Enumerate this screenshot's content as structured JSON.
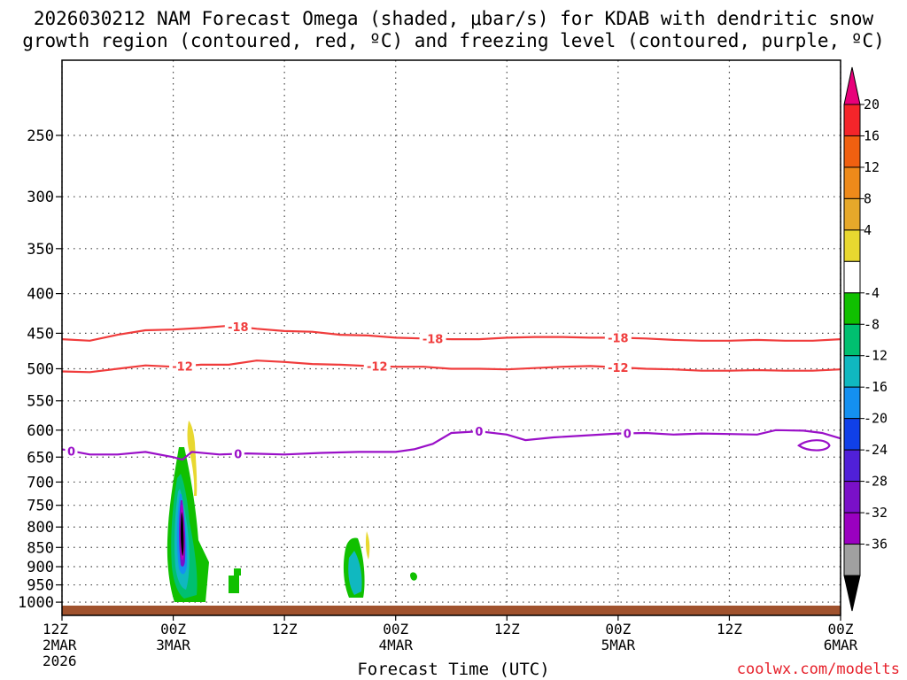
{
  "title_line1": "2026030212 NAM Forecast Omega (shaded, μbar/s) for KDAB with dendritic snow",
  "title_line2": "growth region (contoured, red, ºC) and freezing level (contoured, purple, ºC)",
  "credit": "coolwx.com/modelts",
  "chart_data": {
    "type": "contour",
    "xlabel": "Forecast Time (UTC)",
    "x_ticks": [
      {
        "hour": 0,
        "lines": [
          "12Z",
          "2MAR",
          "2026"
        ]
      },
      {
        "hour": 12,
        "lines": [
          "00Z",
          "3MAR"
        ]
      },
      {
        "hour": 24,
        "lines": [
          "12Z"
        ]
      },
      {
        "hour": 36,
        "lines": [
          "00Z",
          "4MAR"
        ]
      },
      {
        "hour": 48,
        "lines": [
          "12Z"
        ]
      },
      {
        "hour": 60,
        "lines": [
          "00Z",
          "5MAR"
        ]
      },
      {
        "hour": 72,
        "lines": [
          "12Z"
        ]
      },
      {
        "hour": 84,
        "lines": [
          "00Z",
          "6MAR"
        ]
      }
    ],
    "xlim": [
      0,
      84
    ],
    "y_ticks": [
      250,
      300,
      350,
      400,
      450,
      500,
      550,
      600,
      650,
      700,
      750,
      800,
      850,
      900,
      950,
      1000
    ],
    "ylim_hpa": [
      1040,
      200
    ],
    "y_scale": "log-pressure",
    "grid": true,
    "colorbar": {
      "labels": [
        "20",
        "16",
        "12",
        "8",
        "4",
        "-4",
        "-8",
        "-12",
        "-16",
        "-20",
        "-24",
        "-28",
        "-32",
        "-36"
      ],
      "colors": [
        "#e8007a",
        "#f4252a",
        "#f06010",
        "#ee8a1a",
        "#e6a82a",
        "#e8d830",
        "#ffffff",
        "#10c000",
        "#00c070",
        "#10b8c0",
        "#1490f0",
        "#1040e8",
        "#5020d8",
        "#7a10c8",
        "#9a00c0",
        "#a0a0a0",
        "#000000"
      ]
    },
    "contours_red": [
      {
        "label": "-18",
        "label_hours": [
          19,
          40,
          60
        ],
        "points": [
          [
            0,
            458
          ],
          [
            3,
            460
          ],
          [
            6,
            452
          ],
          [
            9,
            446
          ],
          [
            12,
            445
          ],
          [
            15,
            443
          ],
          [
            18,
            440
          ],
          [
            21,
            444
          ],
          [
            24,
            447
          ],
          [
            27,
            448
          ],
          [
            30,
            452
          ],
          [
            33,
            453
          ],
          [
            36,
            456
          ],
          [
            39,
            457
          ],
          [
            42,
            458
          ],
          [
            45,
            458
          ],
          [
            48,
            456
          ],
          [
            51,
            455
          ],
          [
            54,
            455
          ],
          [
            57,
            456
          ],
          [
            60,
            456
          ],
          [
            63,
            457
          ],
          [
            66,
            459
          ],
          [
            69,
            460
          ],
          [
            72,
            460
          ],
          [
            75,
            459
          ],
          [
            78,
            460
          ],
          [
            81,
            460
          ],
          [
            84,
            458
          ]
        ]
      },
      {
        "label": "-12",
        "label_hours": [
          13,
          34,
          60
        ],
        "points": [
          [
            0,
            504
          ],
          [
            3,
            505
          ],
          [
            6,
            500
          ],
          [
            9,
            495
          ],
          [
            12,
            497
          ],
          [
            15,
            494
          ],
          [
            18,
            494
          ],
          [
            21,
            488
          ],
          [
            24,
            490
          ],
          [
            27,
            493
          ],
          [
            30,
            494
          ],
          [
            33,
            496
          ],
          [
            36,
            497
          ],
          [
            39,
            497
          ],
          [
            42,
            500
          ],
          [
            45,
            500
          ],
          [
            48,
            501
          ],
          [
            51,
            499
          ],
          [
            54,
            497
          ],
          [
            57,
            496
          ],
          [
            60,
            498
          ],
          [
            63,
            500
          ],
          [
            66,
            501
          ],
          [
            69,
            503
          ],
          [
            72,
            503
          ],
          [
            75,
            502
          ],
          [
            78,
            503
          ],
          [
            81,
            503
          ],
          [
            84,
            501
          ]
        ]
      }
    ],
    "contours_purple": [
      {
        "label": "0",
        "label_hours": [
          1,
          19,
          45,
          61
        ],
        "points": [
          [
            0,
            635
          ],
          [
            3,
            645
          ],
          [
            6,
            645
          ],
          [
            9,
            640
          ],
          [
            12,
            650
          ],
          [
            13,
            655
          ],
          [
            14,
            640
          ],
          [
            17,
            645
          ],
          [
            20,
            643
          ],
          [
            24,
            645
          ],
          [
            28,
            642
          ],
          [
            32,
            640
          ],
          [
            36,
            640
          ],
          [
            38,
            635
          ],
          [
            40,
            625
          ],
          [
            42,
            605
          ],
          [
            45,
            602
          ],
          [
            48,
            608
          ],
          [
            50,
            618
          ],
          [
            53,
            613
          ],
          [
            56,
            610
          ],
          [
            60,
            606
          ],
          [
            63,
            605
          ],
          [
            66,
            608
          ],
          [
            69,
            606
          ],
          [
            72,
            607
          ],
          [
            75,
            608
          ],
          [
            77,
            600
          ],
          [
            80,
            601
          ],
          [
            82,
            605
          ],
          [
            84,
            615
          ]
        ]
      }
    ],
    "shaded_regions": [
      {
        "omega_range": [
          -8,
          -4
        ],
        "color": "#10c000"
      },
      {
        "omega_range": [
          -36,
          -32
        ],
        "color": "#000000"
      },
      {
        "omega_range": [
          4,
          8
        ],
        "color": "#e8d830"
      }
    ]
  }
}
